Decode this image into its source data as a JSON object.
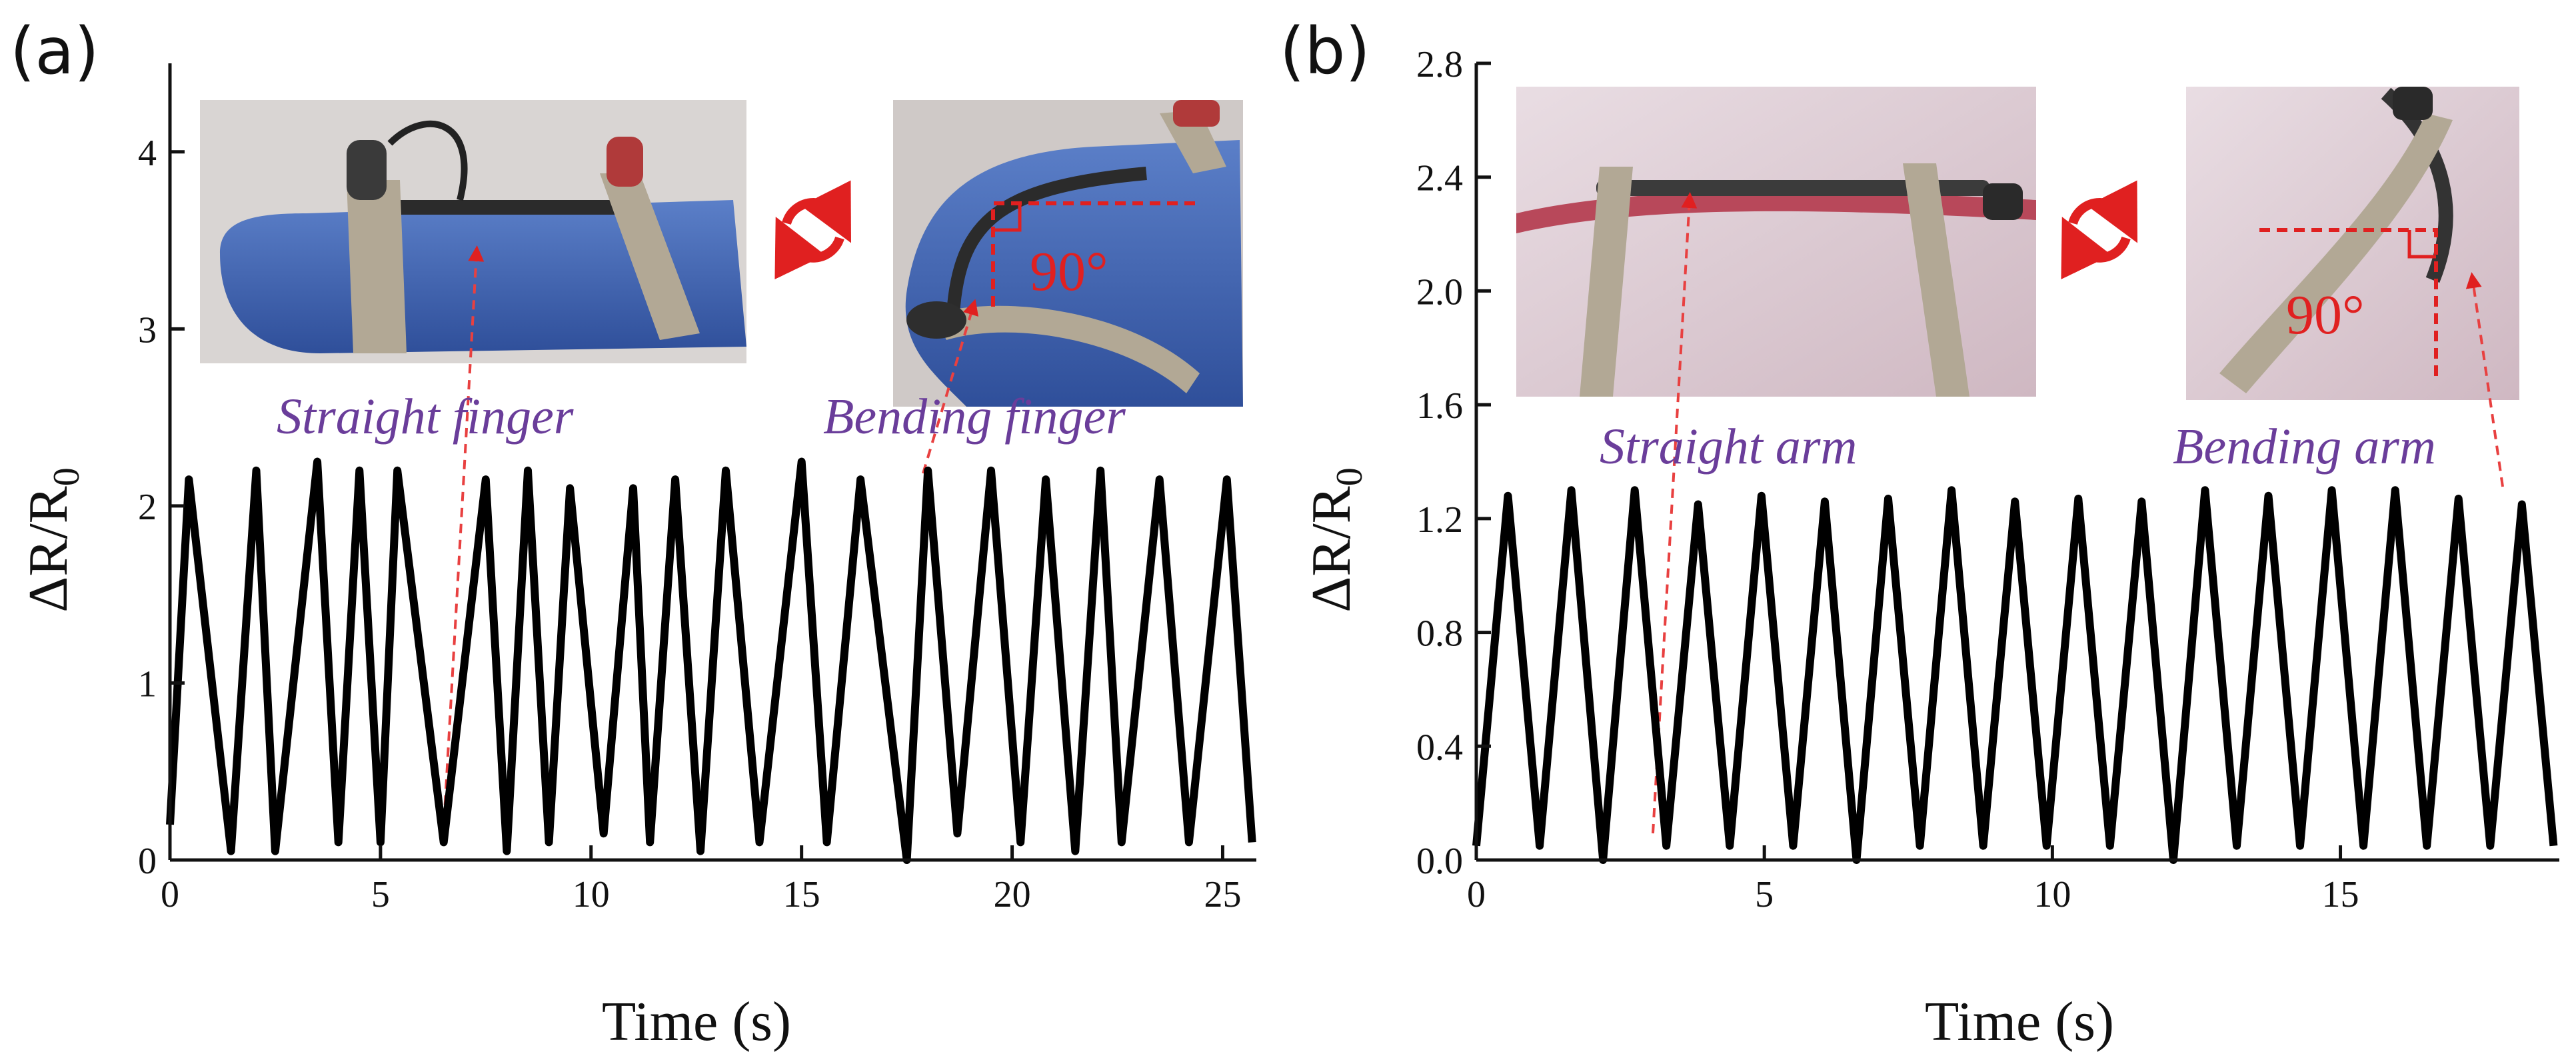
{
  "chart_data": [
    {
      "type": "line",
      "panel": "(a)",
      "xlabel": "Time (s)",
      "ylabel": "ΔR/R",
      "ylabel_sub": "0",
      "xlim": [
        0,
        25.8
      ],
      "ylim": [
        0,
        4.5
      ],
      "xticks": [
        0,
        5,
        10,
        15,
        20,
        25
      ],
      "yticks": [
        0,
        1,
        2,
        3,
        4
      ],
      "xtick_labels": [
        "0",
        "5",
        "10",
        "15",
        "20",
        "25"
      ],
      "ytick_labels": [
        "0",
        "1",
        "2",
        "3",
        "4"
      ],
      "series": [
        {
          "color": "#000000",
          "x": [
            0,
            0.45,
            1.45,
            2.05,
            2.5,
            3.5,
            4.0,
            4.5,
            5.0,
            5.4,
            6.5,
            7.5,
            8.0,
            8.5,
            9.0,
            9.5,
            10.3,
            11.0,
            11.4,
            12.0,
            12.6,
            13.2,
            14.0,
            15.0,
            15.6,
            16.4,
            17.5,
            18.0,
            18.7,
            19.5,
            20.2,
            20.8,
            21.5,
            22.1,
            22.6,
            23.5,
            24.2,
            25.1,
            25.7
          ],
          "y": [
            0.2,
            2.15,
            0.05,
            2.2,
            0.05,
            2.25,
            0.1,
            2.2,
            0.1,
            2.2,
            0.1,
            2.15,
            0.05,
            2.2,
            0.1,
            2.1,
            0.15,
            2.1,
            0.1,
            2.15,
            0.05,
            2.2,
            0.1,
            2.25,
            0.1,
            2.15,
            0.0,
            2.2,
            0.15,
            2.2,
            0.1,
            2.15,
            0.05,
            2.2,
            0.1,
            2.15,
            0.1,
            2.15,
            0.1
          ]
        }
      ],
      "annotations": [
        "Straight finger",
        "Bending finger",
        "90°"
      ]
    },
    {
      "type": "line",
      "panel": "(b)",
      "xlabel": "Time (s)",
      "ylabel": "ΔR/R",
      "ylabel_sub": "0",
      "xlim": [
        0,
        18.8
      ],
      "ylim": [
        0,
        2.8
      ],
      "xticks": [
        0,
        5,
        10,
        15
      ],
      "yticks": [
        0.0,
        0.4,
        0.8,
        1.2,
        1.6,
        2.0,
        2.4,
        2.8
      ],
      "xtick_labels": [
        "0",
        "5",
        "10",
        "15"
      ],
      "ytick_labels": [
        "0.0",
        "0.4",
        "0.8",
        "1.2",
        "1.6",
        "2.0",
        "2.4",
        "2.8"
      ],
      "series": [
        {
          "color": "#000000",
          "x": [
            0,
            0.55,
            1.1,
            1.65,
            2.2,
            2.75,
            3.3,
            3.85,
            4.4,
            4.95,
            5.5,
            6.05,
            6.6,
            7.15,
            7.7,
            8.25,
            8.8,
            9.35,
            9.9,
            10.45,
            11.0,
            11.55,
            12.1,
            12.65,
            13.2,
            13.75,
            14.3,
            14.85,
            15.4,
            15.95,
            16.5,
            17.05,
            17.6,
            18.15,
            18.7
          ],
          "y": [
            0.05,
            1.28,
            0.05,
            1.3,
            0.0,
            1.3,
            0.05,
            1.25,
            0.05,
            1.28,
            0.05,
            1.26,
            0.0,
            1.27,
            0.05,
            1.3,
            0.05,
            1.26,
            0.05,
            1.27,
            0.05,
            1.26,
            0.0,
            1.3,
            0.05,
            1.28,
            0.05,
            1.3,
            0.05,
            1.3,
            0.05,
            1.27,
            0.05,
            1.25,
            0.05
          ]
        }
      ],
      "annotations": [
        "Straight arm",
        "Bending arm",
        "90°"
      ]
    }
  ]
}
